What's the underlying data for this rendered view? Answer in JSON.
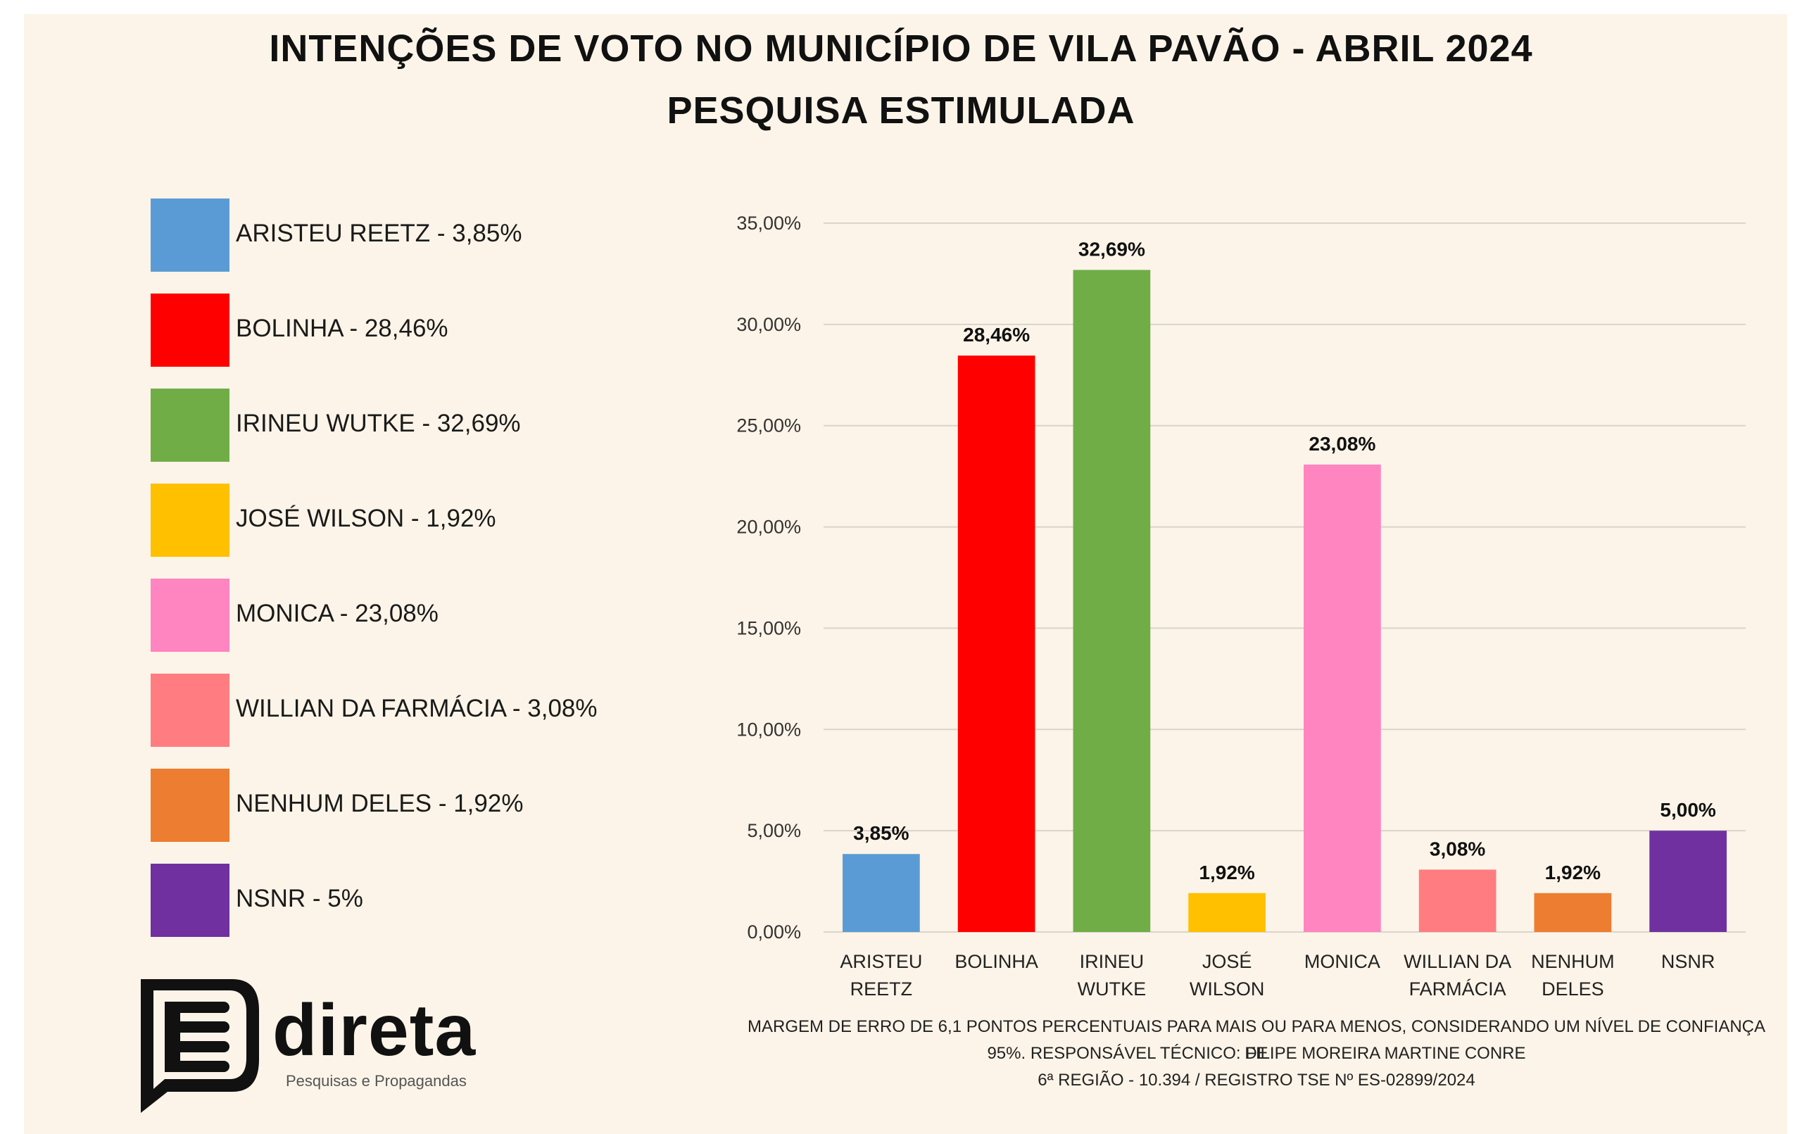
{
  "title_line1": "INTENÇÕES DE VOTO NO MUNICÍPIO DE VILA PAVÃO - ABRIL 2024",
  "title_line2": "PESQUISA ESTIMULADA",
  "legend": [
    {
      "label": "ARISTEU REETZ - 3,85%",
      "color": "#5b9bd5"
    },
    {
      "label": "BOLINHA - 28,46%",
      "color": "#ff0000"
    },
    {
      "label": "IRINEU WUTKE - 32,69%",
      "color": "#70ad47"
    },
    {
      "label": "JOSÉ WILSON - 1,92%",
      "color": "#ffc000"
    },
    {
      "label": "MONICA - 23,08%",
      "color": "#ff85c0"
    },
    {
      "label": "WILLIAN DA FARMÁCIA - 3,08%",
      "color": "#ff7c80"
    },
    {
      "label": "NENHUM DELES - 1,92%",
      "color": "#ed7d31"
    },
    {
      "label": "NSNR - 5%",
      "color": "#7030a0"
    }
  ],
  "chart_data": {
    "type": "bar",
    "title": "INTENÇÕES DE VOTO NO MUNICÍPIO DE VILA PAVÃO - ABRIL 2024",
    "subtitle": "PESQUISA ESTIMULADA",
    "categories": [
      [
        "ARISTEU",
        "REETZ"
      ],
      [
        "BOLINHA"
      ],
      [
        "IRINEU",
        "WUTKE"
      ],
      [
        "JOSÉ",
        "WILSON"
      ],
      [
        "MONICA"
      ],
      [
        "WILLIAN DA",
        "FARMÁCIA"
      ],
      [
        "NENHUM",
        "DELES"
      ],
      [
        "NSNR"
      ]
    ],
    "values": [
      3.85,
      28.46,
      32.69,
      1.92,
      23.08,
      3.08,
      1.92,
      5.0
    ],
    "data_labels": [
      "3,85%",
      "28,46%",
      "32,69%",
      "1,92%",
      "23,08%",
      "3,08%",
      "1,92%",
      "5,00%"
    ],
    "colors": [
      "#5b9bd5",
      "#ff0000",
      "#70ad47",
      "#ffc000",
      "#ff85c0",
      "#ff7c80",
      "#ed7d31",
      "#7030a0"
    ],
    "yticks": [
      0,
      5,
      10,
      15,
      20,
      25,
      30,
      35
    ],
    "ytick_labels": [
      "0,00%",
      "5,00%",
      "10,00%",
      "15,00%",
      "20,00%",
      "25,00%",
      "30,00%",
      "35,00%"
    ],
    "ylim": [
      0,
      35
    ],
    "grid": true,
    "legend_position": "left"
  },
  "logo": {
    "name": "direta",
    "tagline": "Pesquisas e Propagandas"
  },
  "footnote": [
    "MARGEM DE ERRO DE 6,1 PONTOS PERCENTUAIS PARA MAIS OU PARA MENOS, CONSIDERANDO UM NÍVEL DE CONFIANÇA DE",
    "95%. RESPONSÁVEL TÉCNICO: FILIPE MOREIRA MARTINE CONRE",
    "6ª REGIÃO - 10.394 / REGISTRO TSE Nº ES-02899/2024"
  ]
}
